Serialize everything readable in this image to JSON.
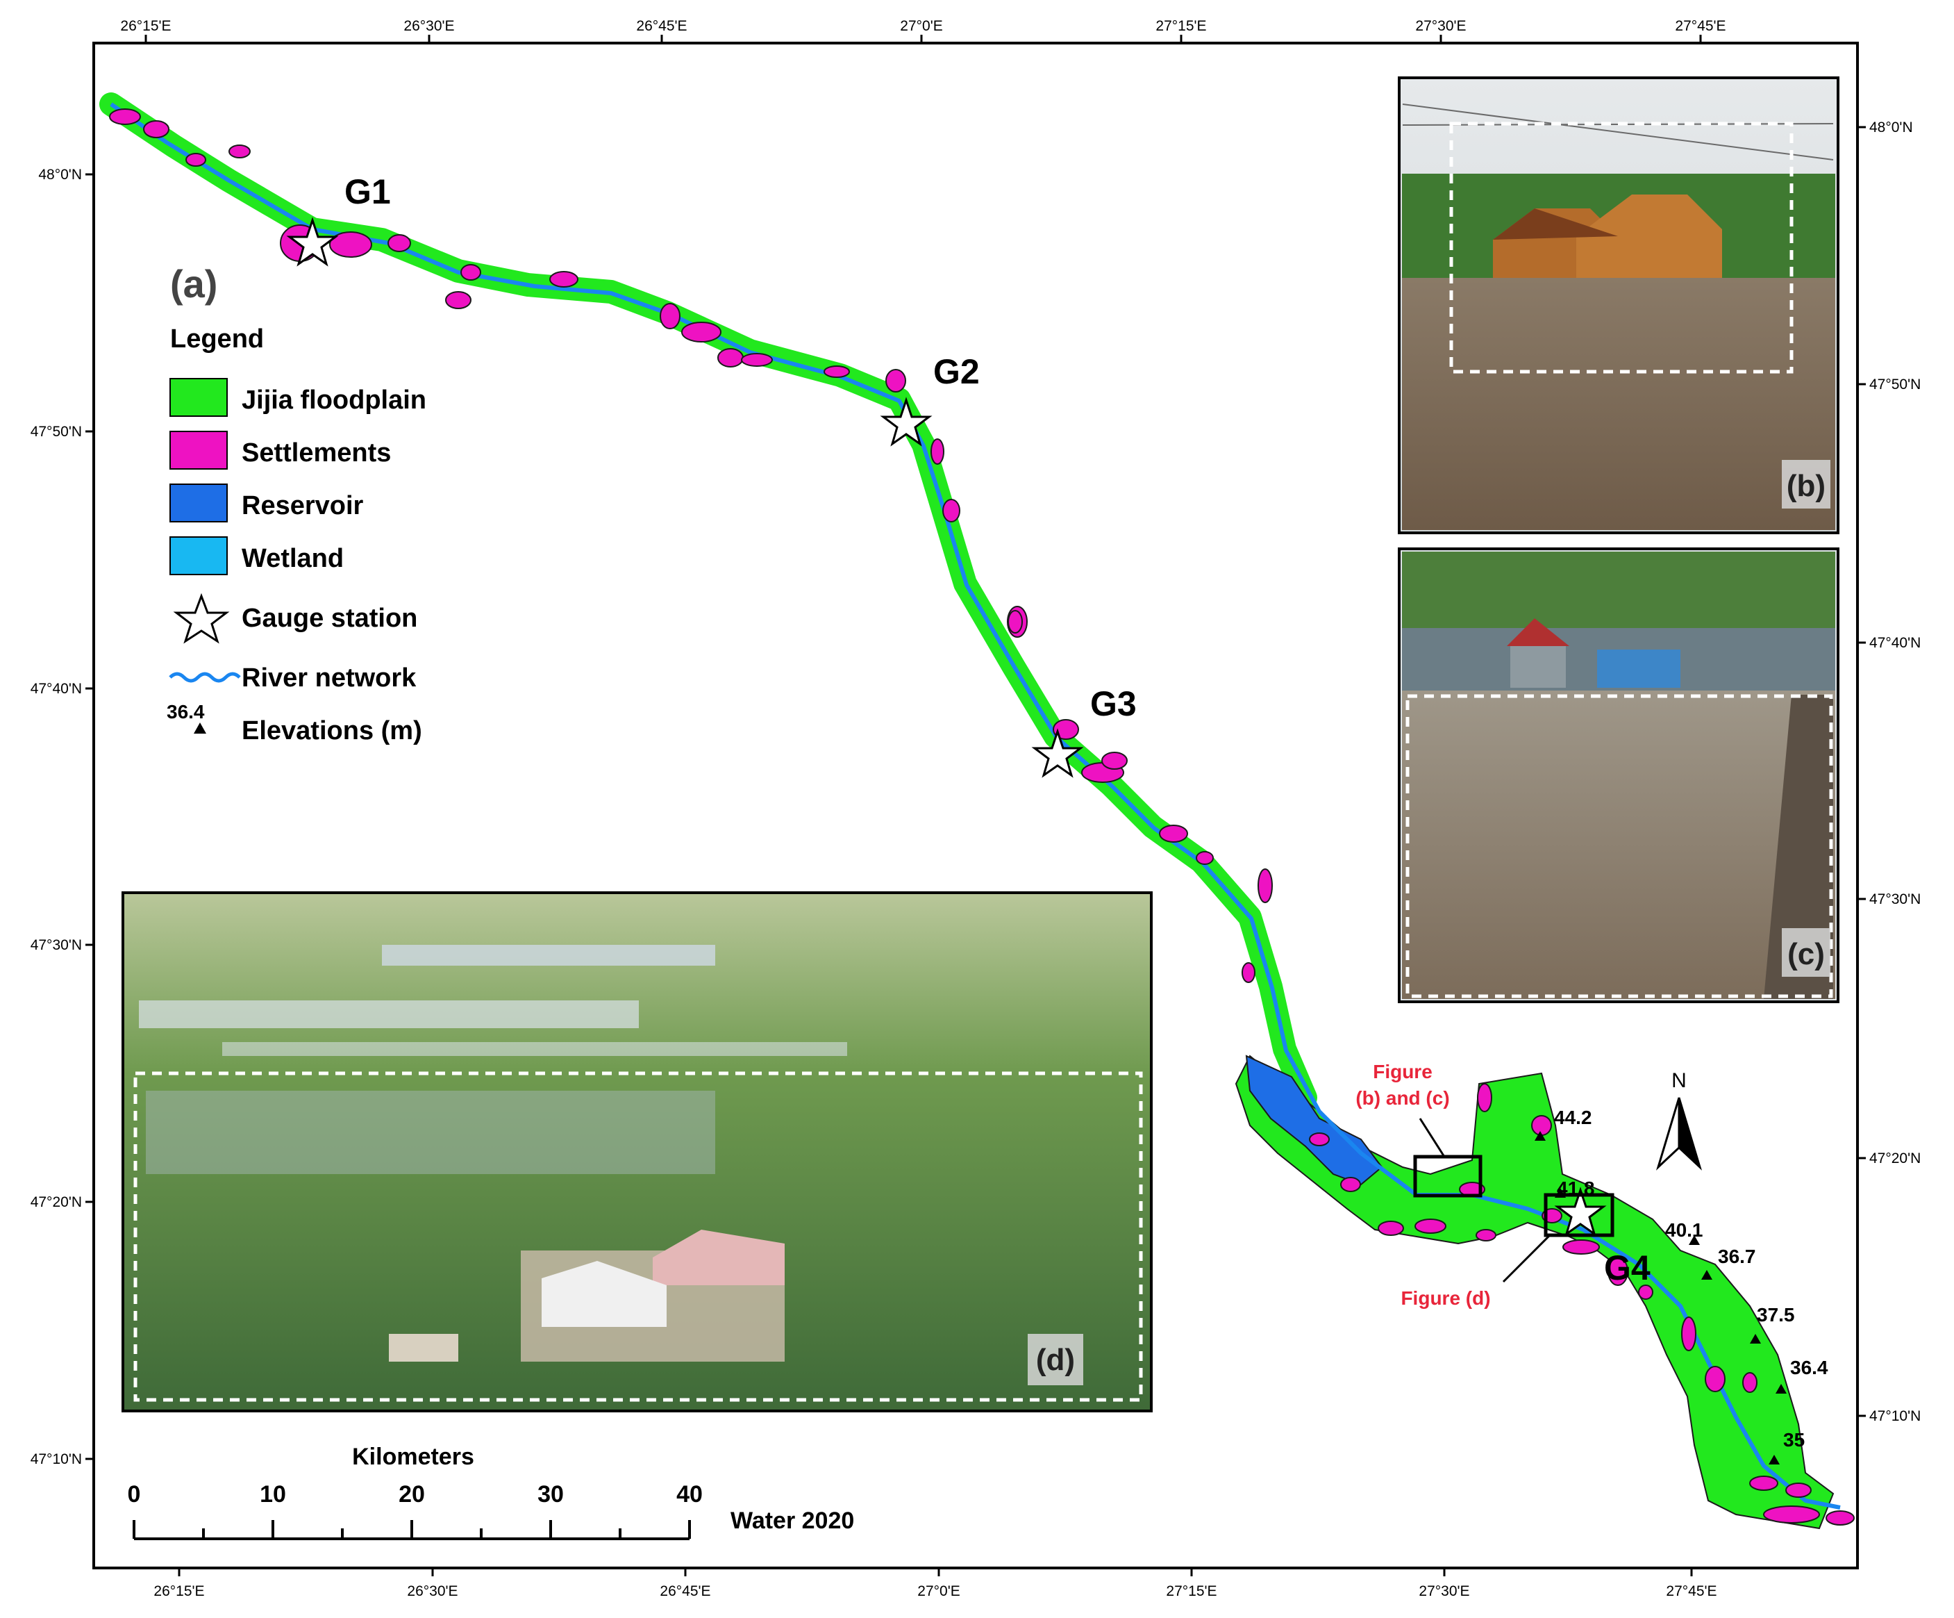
{
  "map": {
    "panel_label": "(a)",
    "top_ticks": [
      "26°15'E",
      "26°30'E",
      "26°45'E",
      "27°0'E",
      "27°15'E",
      "27°30'E",
      "27°45'E"
    ],
    "bottom_ticks": [
      "26°15'E",
      "26°30'E",
      "26°45'E",
      "27°0'E",
      "27°15'E",
      "27°30'E",
      "27°45'E"
    ],
    "left_ticks": [
      "48°0'N",
      "47°50'N",
      "47°40'N",
      "47°30'N",
      "47°20'N",
      "47°10'N"
    ],
    "right_ticks": [
      "48°0'N",
      "47°50'N",
      "47°40'N",
      "47°30'N",
      "47°20'N",
      "47°10'N"
    ],
    "north_label": "N"
  },
  "legend": {
    "title": "Legend",
    "items": [
      {
        "label": "Jijia floodplain",
        "color": "#22e81e"
      },
      {
        "label": "Settlements",
        "color": "#ee12c2"
      },
      {
        "label": "Reservoir",
        "color": "#1e6ee6"
      },
      {
        "label": "Wetland",
        "color": "#18b8f2"
      },
      {
        "label": "Gauge station",
        "icon": "star-icon"
      },
      {
        "label": "River network",
        "icon": "river-line-icon",
        "color": "#1a86f0"
      },
      {
        "label": "Elevations (m)",
        "icon": "triangle-icon",
        "sample_value": "36.4"
      }
    ]
  },
  "gauges": [
    "G1",
    "G2",
    "G3",
    "G4"
  ],
  "elevations": [
    "44.2",
    "41.8",
    "40.1",
    "36.7",
    "37.5",
    "36.4",
    "35"
  ],
  "callouts": {
    "bc_line1": "Figure",
    "bc_line2": "(b) and (c)",
    "d": "Figure (d)"
  },
  "photos": {
    "b_label": "(b)",
    "c_label": "(c)",
    "d_label": "(d)"
  },
  "scale_bar": {
    "title": "Kilometers",
    "ticks": [
      "0",
      "10",
      "20",
      "30",
      "40"
    ],
    "source": "Water 2020"
  }
}
